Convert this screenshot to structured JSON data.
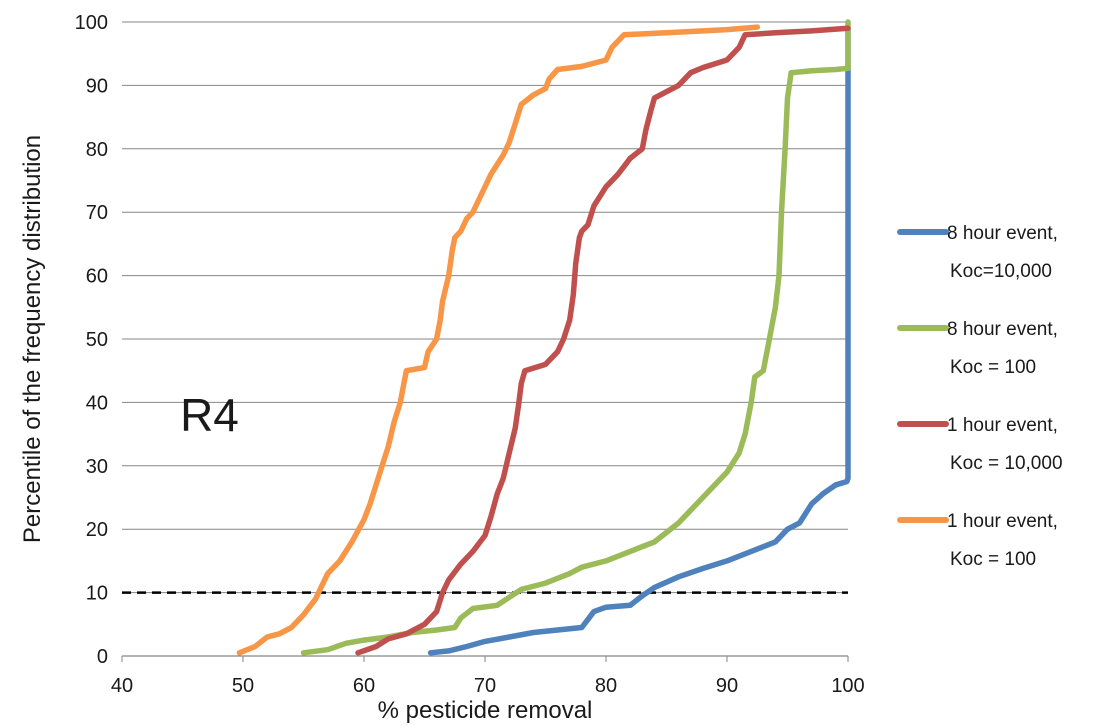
{
  "chart_data": {
    "type": "line",
    "xlabel": "% pesticide removal",
    "ylabel": "Percentile of the frequency distribution",
    "xlim": [
      40,
      100
    ],
    "ylim": [
      0,
      100
    ],
    "x_ticks": [
      "40",
      "50",
      "60",
      "70",
      "80",
      "90",
      "100"
    ],
    "y_ticks": [
      "0",
      "10",
      "20",
      "30",
      "40",
      "50",
      "60",
      "70",
      "80",
      "90",
      "100"
    ],
    "grid": "horizontal",
    "annotation": "R4",
    "reference_line": {
      "y": 10,
      "style": "dashed",
      "color": "#000000"
    },
    "legend_position": "right",
    "series": [
      {
        "name": "8 hour event, Koc=10,000",
        "legend_lines": [
          "8 hour event,",
          "Koc=10,000"
        ],
        "color": "#4f81bd",
        "points": [
          [
            65.5,
            0.5
          ],
          [
            67,
            0.8
          ],
          [
            68.5,
            1.5
          ],
          [
            70,
            2.3
          ],
          [
            72,
            3
          ],
          [
            74,
            3.7
          ],
          [
            76,
            4.1
          ],
          [
            78,
            4.5
          ],
          [
            79,
            7
          ],
          [
            80,
            7.7
          ],
          [
            82,
            8
          ],
          [
            83,
            9.5
          ],
          [
            84,
            10.8
          ],
          [
            86,
            12.5
          ],
          [
            88,
            13.8
          ],
          [
            90,
            15
          ],
          [
            92,
            16.5
          ],
          [
            94,
            18
          ],
          [
            95,
            20
          ],
          [
            96,
            21
          ],
          [
            97,
            24
          ],
          [
            98,
            25.7
          ],
          [
            99,
            27
          ],
          [
            99.9,
            27.5
          ],
          [
            100,
            28
          ],
          [
            100,
            99
          ]
        ]
      },
      {
        "name": "8 hour event, Koc = 100",
        "legend_lines": [
          "8 hour event,",
          "Koc = 100"
        ],
        "color": "#9bbb59",
        "points": [
          [
            55,
            0.5
          ],
          [
            57,
            1
          ],
          [
            58.5,
            2
          ],
          [
            60,
            2.5
          ],
          [
            62,
            3
          ],
          [
            64,
            3.7
          ],
          [
            66,
            4.1
          ],
          [
            67.5,
            4.5
          ],
          [
            68,
            6
          ],
          [
            69,
            7.5
          ],
          [
            71,
            8
          ],
          [
            73,
            10.5
          ],
          [
            75,
            11.5
          ],
          [
            77,
            13
          ],
          [
            78,
            14
          ],
          [
            80,
            15
          ],
          [
            82,
            16.5
          ],
          [
            84,
            18
          ],
          [
            85,
            19.5
          ],
          [
            86,
            21
          ],
          [
            87,
            23
          ],
          [
            88,
            25
          ],
          [
            89,
            27
          ],
          [
            90,
            29
          ],
          [
            91,
            32
          ],
          [
            91.5,
            35
          ],
          [
            92,
            40
          ],
          [
            92.3,
            44
          ],
          [
            93,
            45
          ],
          [
            93.5,
            50
          ],
          [
            94,
            55
          ],
          [
            94.3,
            60
          ],
          [
            94.5,
            70
          ],
          [
            94.8,
            80
          ],
          [
            95,
            88
          ],
          [
            95.3,
            92
          ],
          [
            97,
            92.3
          ],
          [
            99,
            92.5
          ],
          [
            100,
            92.7
          ],
          [
            100,
            100
          ]
        ]
      },
      {
        "name": "1 hour event, Koc = 10,000",
        "legend_lines": [
          "1 hour event,",
          "Koc = 10,000"
        ],
        "color": "#c0504d",
        "points": [
          [
            59.5,
            0.5
          ],
          [
            61,
            1.5
          ],
          [
            62,
            2.7
          ],
          [
            63.5,
            3.5
          ],
          [
            65,
            5
          ],
          [
            66,
            7
          ],
          [
            66.5,
            10
          ],
          [
            67,
            12
          ],
          [
            68,
            14.5
          ],
          [
            69,
            16.5
          ],
          [
            70,
            19
          ],
          [
            70.5,
            22
          ],
          [
            71,
            25.5
          ],
          [
            71.5,
            28
          ],
          [
            72,
            32
          ],
          [
            72.5,
            36
          ],
          [
            72.8,
            40
          ],
          [
            73,
            43
          ],
          [
            73.3,
            45
          ],
          [
            75,
            46
          ],
          [
            76,
            48
          ],
          [
            76.5,
            50
          ],
          [
            77,
            53
          ],
          [
            77.3,
            57
          ],
          [
            77.5,
            62
          ],
          [
            77.8,
            66
          ],
          [
            78,
            67
          ],
          [
            78.5,
            68
          ],
          [
            79,
            71
          ],
          [
            80,
            74
          ],
          [
            81,
            76
          ],
          [
            82,
            78.5
          ],
          [
            83,
            80
          ],
          [
            83.3,
            83
          ],
          [
            83.7,
            86
          ],
          [
            84,
            88
          ],
          [
            85,
            89
          ],
          [
            86,
            90
          ],
          [
            87,
            92
          ],
          [
            88,
            92.8
          ],
          [
            90,
            94
          ],
          [
            91,
            96
          ],
          [
            91.5,
            98
          ],
          [
            94,
            98.3
          ],
          [
            97,
            98.6
          ],
          [
            100,
            99
          ]
        ]
      },
      {
        "name": "1 hour event, Koc = 100",
        "legend_lines": [
          "1 hour event,",
          "Koc = 100"
        ],
        "color": "#f79646",
        "points": [
          [
            49.7,
            0.5
          ],
          [
            51,
            1.5
          ],
          [
            52,
            3
          ],
          [
            53,
            3.5
          ],
          [
            54,
            4.5
          ],
          [
            55,
            6.5
          ],
          [
            56,
            9
          ],
          [
            56.5,
            11
          ],
          [
            57,
            13
          ],
          [
            58,
            15
          ],
          [
            59,
            18
          ],
          [
            60,
            21.5
          ],
          [
            60.5,
            24
          ],
          [
            61,
            27
          ],
          [
            61.5,
            30
          ],
          [
            62,
            33
          ],
          [
            62.5,
            37
          ],
          [
            63,
            40
          ],
          [
            63.3,
            43
          ],
          [
            63.5,
            45
          ],
          [
            65,
            45.5
          ],
          [
            65.3,
            48
          ],
          [
            66,
            50
          ],
          [
            66.3,
            53
          ],
          [
            66.5,
            56
          ],
          [
            67,
            60
          ],
          [
            67.3,
            64
          ],
          [
            67.5,
            66
          ],
          [
            68,
            67
          ],
          [
            68.5,
            69
          ],
          [
            69,
            70
          ],
          [
            69.5,
            72
          ],
          [
            70,
            74
          ],
          [
            70.5,
            76
          ],
          [
            71,
            77.5
          ],
          [
            71.5,
            79
          ],
          [
            72,
            81
          ],
          [
            72.5,
            84
          ],
          [
            73,
            87
          ],
          [
            74,
            88.5
          ],
          [
            75,
            89.5
          ],
          [
            75.3,
            91
          ],
          [
            76,
            92.5
          ],
          [
            78,
            93
          ],
          [
            80,
            94
          ],
          [
            80.5,
            96
          ],
          [
            81.5,
            98
          ],
          [
            85,
            98.3
          ],
          [
            90,
            98.8
          ],
          [
            92.5,
            99.2
          ]
        ]
      }
    ]
  }
}
